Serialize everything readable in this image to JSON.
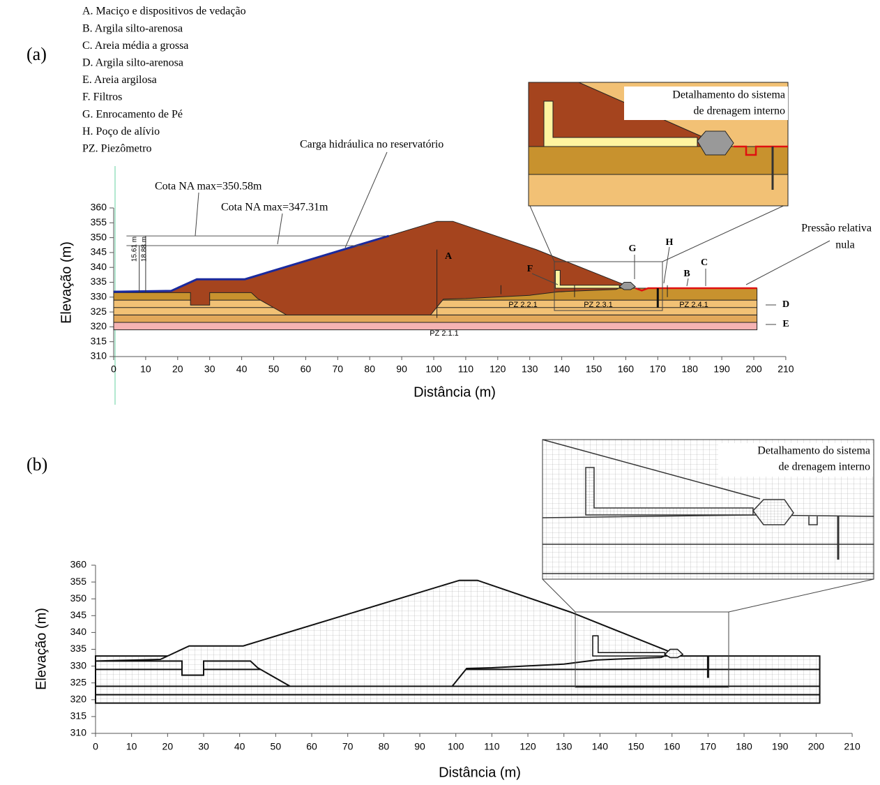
{
  "legend": [
    "A. Maciço e dispositivos de vedação",
    "B. Argila  silto-arenosa",
    "C. Areia média a grossa",
    "D. Argila silto-arenosa",
    "E. Areia argilosa",
    "F. Filtros",
    "G. Enrocamento de Pé",
    "H. Poço de alívio",
    "PZ. Piezômetro"
  ],
  "panel_a": {
    "label": "(a)",
    "x_label": "Distância (m)",
    "y_label": "Elevação (m)",
    "xticks": [
      0,
      10,
      20,
      30,
      40,
      50,
      60,
      70,
      80,
      90,
      100,
      110,
      120,
      130,
      140,
      150,
      160,
      170,
      180,
      190,
      200,
      210
    ],
    "yticks": [
      310,
      315,
      320,
      325,
      330,
      335,
      340,
      345,
      350,
      355,
      360
    ],
    "annotations": {
      "water_level_1": "Cota NA max=350.58m",
      "water_level_2": "Cota NA max=347.31m",
      "reservoir_head": "Carga hidráulica no reservatório",
      "zero_pressure": [
        "Pressão relativa",
        "nula"
      ],
      "depth_1": "15.61 m",
      "depth_2": "18.88 m",
      "zones": [
        "A",
        "B",
        "C",
        "D",
        "E",
        "F",
        "G",
        "H"
      ],
      "piezometers": [
        "PZ 2.1.1",
        "PZ 2.2.1",
        "PZ 2.3.1",
        "PZ 2.4.1"
      ]
    },
    "inset_title": [
      "Detalhamento do sistema",
      "de drenagem  interno"
    ]
  },
  "panel_b": {
    "label": "(b)",
    "x_label": "Distância (m)",
    "y_label": "Elevação (m)",
    "xticks": [
      0,
      10,
      20,
      30,
      40,
      50,
      60,
      70,
      80,
      90,
      100,
      110,
      120,
      130,
      140,
      150,
      160,
      170,
      180,
      190,
      200,
      210
    ],
    "yticks": [
      310,
      315,
      320,
      325,
      330,
      335,
      340,
      345,
      350,
      355,
      360
    ],
    "inset_title": [
      "Detalhamento do sistema",
      "de drenagem  interno"
    ]
  }
}
